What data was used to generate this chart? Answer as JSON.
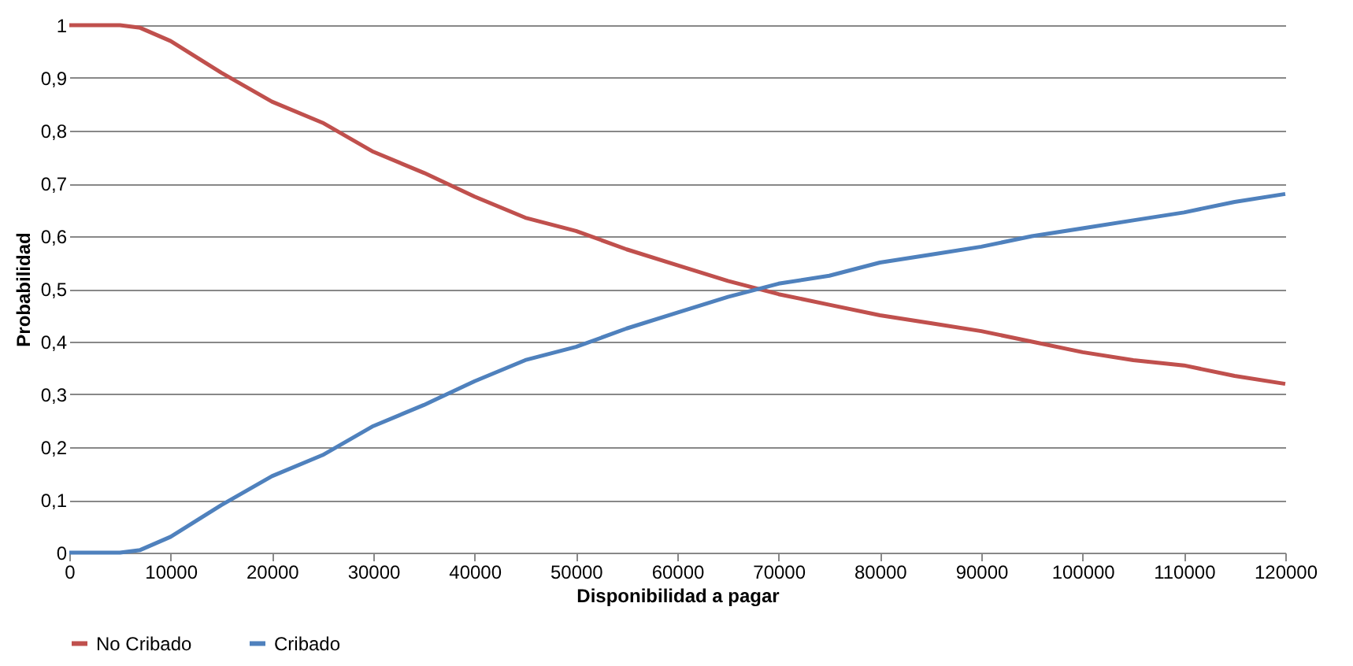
{
  "chart_data": {
    "type": "line",
    "xlabel": "Disponibilidad a pagar",
    "ylabel": "Probabilidad",
    "x": [
      0,
      5000,
      7000,
      10000,
      15000,
      20000,
      25000,
      30000,
      35000,
      40000,
      45000,
      50000,
      55000,
      60000,
      65000,
      70000,
      75000,
      80000,
      85000,
      90000,
      95000,
      100000,
      105000,
      110000,
      115000,
      120000
    ],
    "series": [
      {
        "name": "No Cribado",
        "color": "#c0504d",
        "values": [
          1,
          1,
          0.995,
          0.97,
          0.91,
          0.855,
          0.815,
          0.76,
          0.72,
          0.675,
          0.635,
          0.61,
          0.575,
          0.545,
          0.515,
          0.49,
          0.47,
          0.45,
          0.435,
          0.42,
          0.4,
          0.38,
          0.365,
          0.355,
          0.335,
          0.32
        ]
      },
      {
        "name": "Cribado",
        "color": "#4f81bd",
        "values": [
          0,
          0,
          0.005,
          0.03,
          0.09,
          0.145,
          0.185,
          0.24,
          0.28,
          0.325,
          0.365,
          0.39,
          0.425,
          0.455,
          0.485,
          0.51,
          0.525,
          0.55,
          0.565,
          0.58,
          0.6,
          0.615,
          0.63,
          0.645,
          0.665,
          0.68
        ]
      }
    ],
    "xlim": [
      0,
      120000
    ],
    "xticks": [
      0,
      10000,
      20000,
      30000,
      40000,
      50000,
      60000,
      70000,
      80000,
      90000,
      100000,
      110000,
      120000
    ],
    "ylim": [
      0,
      1
    ],
    "yticks": [
      0,
      {
        "value": 0.1,
        "label": "0,1"
      },
      {
        "value": 0.2,
        "label": "0,2"
      },
      {
        "value": 0.3,
        "label": "0,3"
      },
      {
        "value": 0.4,
        "label": "0,4"
      },
      {
        "value": 0.5,
        "label": "0,5"
      },
      {
        "value": 0.6,
        "label": "0,6"
      },
      {
        "value": 0.7,
        "label": "0,7"
      },
      {
        "value": 0.8,
        "label": "0,8"
      },
      {
        "value": 0.9,
        "label": "0,9"
      },
      1
    ],
    "grid": "y",
    "legend": "bottom",
    "marker": "none",
    "line_style": "solid"
  }
}
